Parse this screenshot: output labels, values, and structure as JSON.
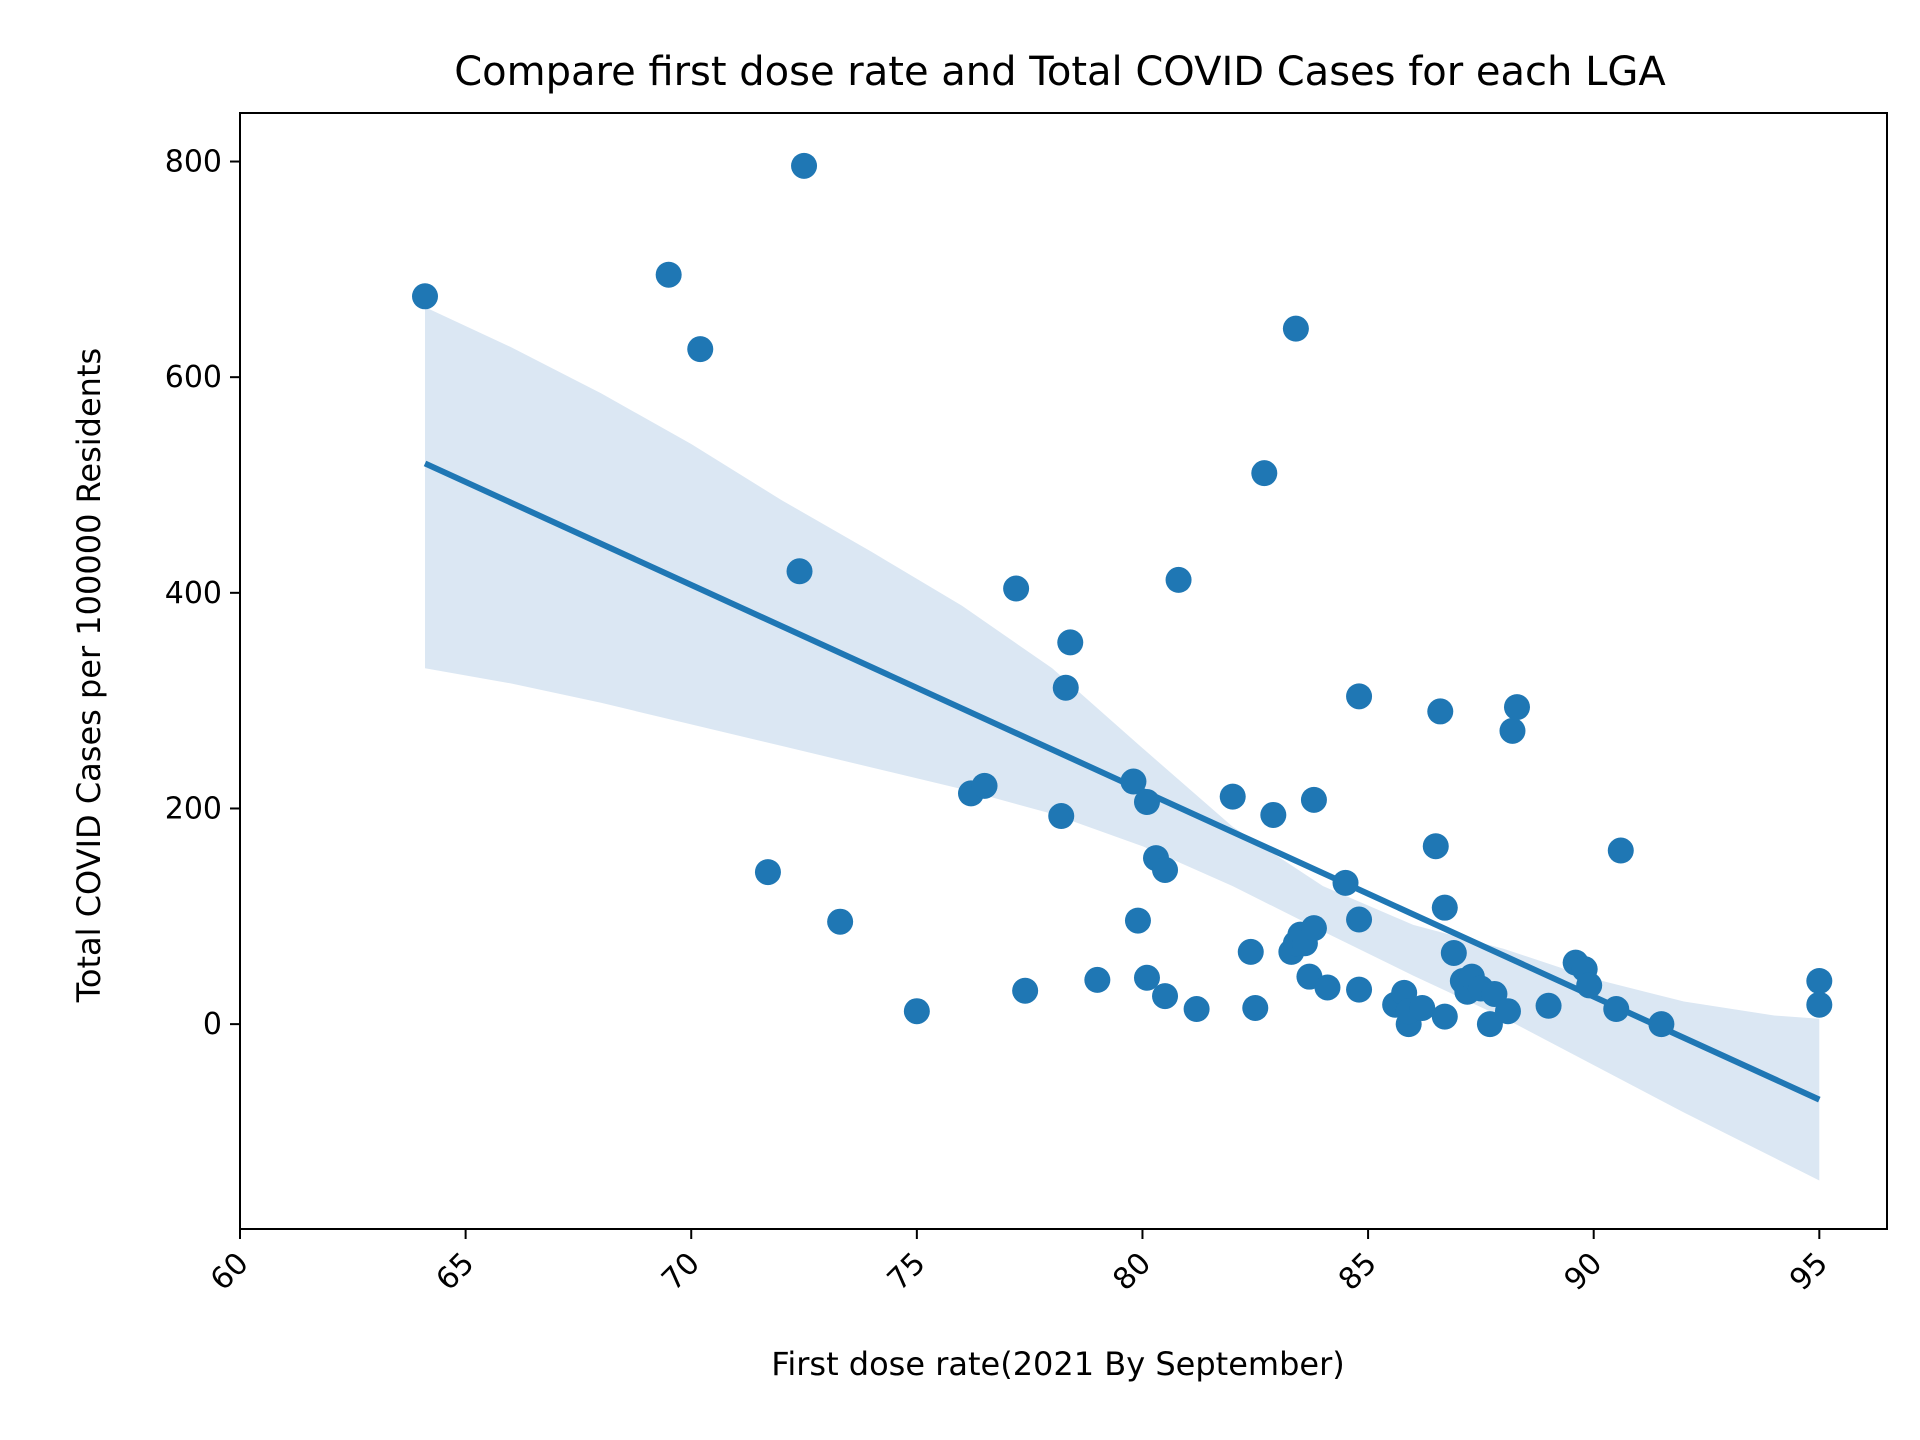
{
  "chart_data": {
    "type": "scatter",
    "title": "Compare first dose rate and Total COVID Cases for each LGA",
    "xlabel": "First dose rate(2021 By September)",
    "ylabel": "Total COVID Cases per 100000 Residents",
    "xlim": [
      60,
      96.5
    ],
    "ylim": [
      -190,
      845
    ],
    "x_ticks": [
      60,
      65,
      70,
      75,
      80,
      85,
      90,
      95
    ],
    "x_tick_labels": [
      "60",
      "65",
      "70",
      "75",
      "80",
      "85",
      "90",
      "95"
    ],
    "y_ticks": [
      0,
      200,
      400,
      600,
      800
    ],
    "y_tick_labels": [
      "0",
      "200",
      "400",
      "600",
      "800"
    ],
    "x_tick_rotation": 45,
    "grid": false,
    "colors": {
      "points": "#1f77b4",
      "line": "#1f77b4",
      "band": "#dbe7f3"
    },
    "points": [
      {
        "x": 64.1,
        "y": 675
      },
      {
        "x": 69.5,
        "y": 695
      },
      {
        "x": 70.2,
        "y": 626
      },
      {
        "x": 72.5,
        "y": 796
      },
      {
        "x": 72.4,
        "y": 420
      },
      {
        "x": 71.7,
        "y": 141
      },
      {
        "x": 73.3,
        "y": 95
      },
      {
        "x": 75.0,
        "y": 12
      },
      {
        "x": 76.2,
        "y": 214
      },
      {
        "x": 76.5,
        "y": 221
      },
      {
        "x": 77.2,
        "y": 404
      },
      {
        "x": 77.4,
        "y": 31
      },
      {
        "x": 78.2,
        "y": 193
      },
      {
        "x": 78.3,
        "y": 312
      },
      {
        "x": 78.4,
        "y": 354
      },
      {
        "x": 79.0,
        "y": 41
      },
      {
        "x": 79.8,
        "y": 225
      },
      {
        "x": 79.9,
        "y": 96
      },
      {
        "x": 80.1,
        "y": 206
      },
      {
        "x": 80.1,
        "y": 43
      },
      {
        "x": 80.3,
        "y": 154
      },
      {
        "x": 80.5,
        "y": 143
      },
      {
        "x": 80.5,
        "y": 26
      },
      {
        "x": 80.8,
        "y": 412
      },
      {
        "x": 81.2,
        "y": 14
      },
      {
        "x": 82.0,
        "y": 211
      },
      {
        "x": 82.4,
        "y": 67
      },
      {
        "x": 82.5,
        "y": 15
      },
      {
        "x": 82.7,
        "y": 511
      },
      {
        "x": 82.9,
        "y": 194
      },
      {
        "x": 83.3,
        "y": 67
      },
      {
        "x": 83.4,
        "y": 645
      },
      {
        "x": 83.4,
        "y": 75
      },
      {
        "x": 83.5,
        "y": 83
      },
      {
        "x": 83.6,
        "y": 75
      },
      {
        "x": 83.7,
        "y": 44
      },
      {
        "x": 83.8,
        "y": 208
      },
      {
        "x": 83.8,
        "y": 89
      },
      {
        "x": 84.1,
        "y": 34
      },
      {
        "x": 84.5,
        "y": 131
      },
      {
        "x": 84.8,
        "y": 304
      },
      {
        "x": 84.8,
        "y": 97
      },
      {
        "x": 84.8,
        "y": 32
      },
      {
        "x": 85.6,
        "y": 18
      },
      {
        "x": 85.8,
        "y": 29
      },
      {
        "x": 85.9,
        "y": 0
      },
      {
        "x": 85.9,
        "y": 12
      },
      {
        "x": 86.2,
        "y": 15
      },
      {
        "x": 86.5,
        "y": 165
      },
      {
        "x": 86.6,
        "y": 290
      },
      {
        "x": 86.7,
        "y": 108
      },
      {
        "x": 86.7,
        "y": 7
      },
      {
        "x": 86.9,
        "y": 66
      },
      {
        "x": 87.1,
        "y": 40
      },
      {
        "x": 87.2,
        "y": 30
      },
      {
        "x": 87.3,
        "y": 44
      },
      {
        "x": 87.5,
        "y": 33
      },
      {
        "x": 87.7,
        "y": 0
      },
      {
        "x": 87.8,
        "y": 28
      },
      {
        "x": 88.1,
        "y": 12
      },
      {
        "x": 88.2,
        "y": 272
      },
      {
        "x": 88.3,
        "y": 294
      },
      {
        "x": 89.0,
        "y": 17
      },
      {
        "x": 89.6,
        "y": 57
      },
      {
        "x": 89.8,
        "y": 51
      },
      {
        "x": 89.9,
        "y": 36
      },
      {
        "x": 90.5,
        "y": 14
      },
      {
        "x": 90.6,
        "y": 161
      },
      {
        "x": 91.5,
        "y": 0
      },
      {
        "x": 95.0,
        "y": 40
      },
      {
        "x": 95.0,
        "y": 18
      }
    ],
    "regression": {
      "x": [
        64.1,
        95.0
      ],
      "y": [
        520,
        -70
      ]
    },
    "ci_band": {
      "x": [
        64.1,
        66,
        68,
        70,
        72,
        74,
        76,
        78,
        80,
        82,
        84,
        86,
        88,
        90,
        92,
        94,
        95.0
      ],
      "upper": [
        665,
        628,
        585,
        538,
        486,
        438,
        388,
        330,
        256,
        183,
        128,
        92,
        70,
        42,
        21,
        8,
        5
      ],
      "lower": [
        330,
        316,
        298,
        278,
        258,
        238,
        218,
        195,
        165,
        128,
        86,
        45,
        6,
        -38,
        -82,
        -124,
        -145
      ]
    }
  }
}
